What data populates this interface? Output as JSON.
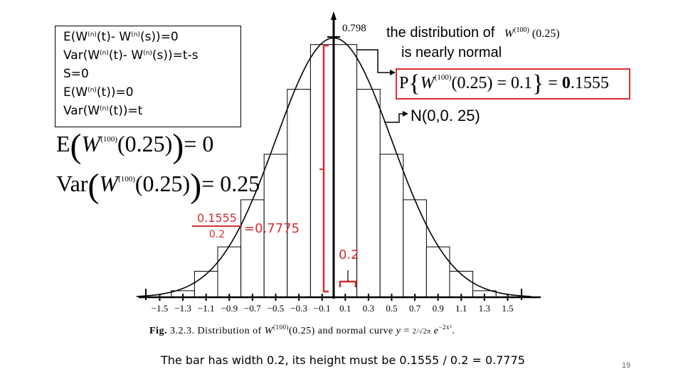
{
  "info_box": {
    "line1": "E(W(n)(t)- W(n)(s))=0",
    "line2": "Var(W(n)(t)- W(n)(s))=t-s",
    "line3": "S=0",
    "line4": "E(W(n)(t))=0",
    "line5": "Var(W(n)(t))=t"
  },
  "formula_mean": "E(W(100)(0.25))=0",
  "formula_var": "Var(W(100)(0.25))=0.25",
  "fraction": {
    "numerator": "0.1555",
    "denominator": "0.2",
    "result": "=0.7775"
  },
  "width_label": "0.2",
  "peak_label": "0.798",
  "annotation_top": {
    "line1": "the distribution of",
    "line1_math": "W(100)(0.25)",
    "line2": "is nearly normal"
  },
  "prob_formula": "P{W(100)(0.25)=0.1}=0.1555",
  "normal_label": "N(0,0. 25)",
  "fig_caption": "Fig. 3.2.3. Distribution of W(100)(0.25) and normal curve y = (2/√(2π)) e^(−2x²).",
  "bottom_note": "The bar has width 0.2, its height must be 0.1555 / 0.2 = 0.7775",
  "page_number": "19",
  "colors": {
    "accent_red": "#d32f2f",
    "axis": "#000000"
  },
  "chart_data": {
    "type": "bar",
    "x_ticks": [
      "−1.5",
      "−1.3",
      "−1.1",
      "−0.9",
      "−0.7",
      "−0.5",
      "−0.3",
      "−0.1",
      "0.1",
      "0.3",
      "0.5",
      "0.7",
      "0.9",
      "1.1",
      "1.3",
      "1.5"
    ],
    "bars": [
      {
        "x": -1.5,
        "height": 0.0
      },
      {
        "x": -1.3,
        "height": 0.02
      },
      {
        "x": -1.1,
        "height": 0.08
      },
      {
        "x": -0.9,
        "height": 0.155
      },
      {
        "x": -0.7,
        "height": 0.3
      },
      {
        "x": -0.5,
        "height": 0.44
      },
      {
        "x": -0.3,
        "height": 0.64
      },
      {
        "x": -0.1,
        "height": 0.7775
      },
      {
        "x": 0.1,
        "height": 0.7775
      },
      {
        "x": 0.3,
        "height": 0.64
      },
      {
        "x": 0.5,
        "height": 0.44
      },
      {
        "x": 0.7,
        "height": 0.3
      },
      {
        "x": 0.9,
        "height": 0.155
      },
      {
        "x": 1.1,
        "height": 0.08
      },
      {
        "x": 1.3,
        "height": 0.02
      },
      {
        "x": 1.5,
        "height": 0.0
      }
    ],
    "bar_width": 0.2,
    "curve": "y = (2/sqrt(2*pi)) * exp(-2 x^2)",
    "ymax": 0.798,
    "xlim": [
      -1.7,
      1.7
    ]
  }
}
